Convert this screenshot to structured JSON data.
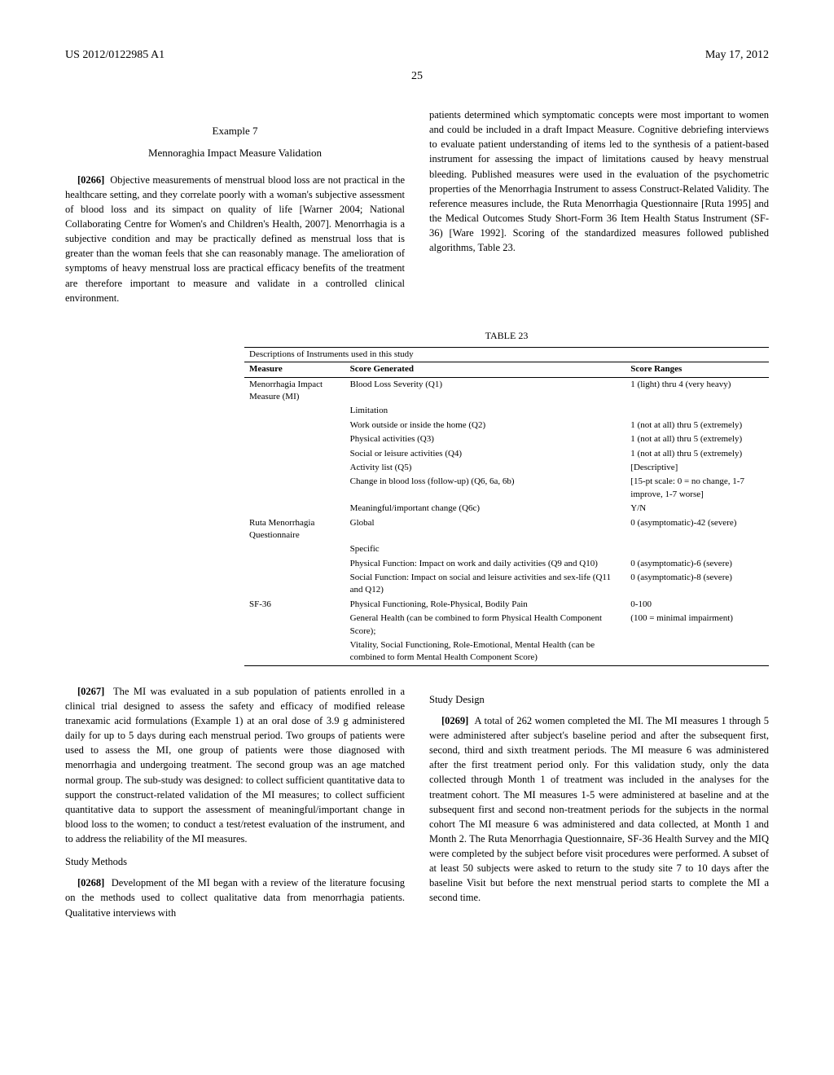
{
  "header": {
    "docnum": "US 2012/0122985 A1",
    "date": "May 17, 2012",
    "pagenum": "25"
  },
  "example": {
    "num": "Example 7",
    "title": "Mennoraghia Impact Measure Validation"
  },
  "paras": {
    "p0266_id": "[0266]",
    "p0266": "Objective measurements of menstrual blood loss are not practical in the healthcare setting, and they correlate poorly with a woman's subjective assessment of blood loss and its simpact on quality of life [Warner 2004; National Collaborating Centre for Women's and Children's Health, 2007]. Menorrhagia is a subjective condition and may be practically defined as menstrual loss that is greater than the woman feels that she can reasonably manage. The amelioration of symptoms of heavy menstrual loss are practical efficacy benefits of the treatment are therefore important to measure and validate in a controlled clinical environment.",
    "right1": "patients determined which symptomatic concepts were most important to women and could be included in a draft Impact Measure. Cognitive debriefing interviews to evaluate patient understanding of items led to the synthesis of a patient-based instrument for assessing the impact of limitations caused by heavy menstrual bleeding. Published measures were used in the evaluation of the psychometric properties of the Menorrhagia Instrument to assess Construct-Related Validity. The reference measures include, the Ruta Menorrhagia Questionnaire [Ruta 1995] and the Medical Outcomes Study Short-Form 36 Item Health Status Instrument (SF-36) [Ware 1992]. Scoring of the standardized measures followed published algorithms, Table 23.",
    "p0267_id": "[0267]",
    "p0267": "The MI was evaluated in a sub population of patients enrolled in a clinical trial designed to assess the safety and efficacy of modified release tranexamic acid formulations (Example 1) at an oral dose of 3.9 g administered daily for up to 5 days during each menstrual period. Two groups of patients were used to assess the MI, one group of patients were those diagnosed with menorrhagia and undergoing treatment. The second group was an age matched normal group. The sub-study was designed: to collect sufficient quantitative data to support the construct-related validation of the MI measures; to collect sufficient quantitative data to support the assessment of meaningful/important change in blood loss to the women; to conduct a test/retest evaluation of the instrument, and to address the reliability of the MI measures.",
    "study_methods_h": "Study Methods",
    "p0268_id": "[0268]",
    "p0268": "Development of the MI began with a review of the literature focusing on the methods used to collect qualitative data from menorrhagia patients. Qualitative interviews with",
    "study_design_h": "Study Design",
    "p0269_id": "[0269]",
    "p0269": "A total of 262 women completed the MI. The MI measures 1 through 5 were administered after subject's baseline period and after the subsequent first, second, third and sixth treatment periods. The MI measure 6 was administered after the first treatment period only. For this validation study, only the data collected through Month 1 of treatment was included in the analyses for the treatment cohort. The MI measures 1-5 were administered at baseline and at the subsequent first and second non-treatment periods for the subjects in the normal cohort The MI measure 6 was administered and data collected, at Month 1 and Month 2. The Ruta Menorrhagia Questionnaire, SF-36 Health Survey and the MIQ were completed by the subject before visit procedures were performed. A subset of at least 50 subjects were asked to return to the study site 7 to 10 days after the baseline Visit but before the next menstrual period starts to complete the MI a second time."
  },
  "table23": {
    "caption": "TABLE 23",
    "subtitle": "Descriptions of Instruments used in this study",
    "cols": [
      "Measure",
      "Score Generated",
      "Score Ranges"
    ],
    "rows": [
      [
        "Menorrhagia Impact Measure (MI)",
        "Blood Loss Severity (Q1)",
        "1 (light) thru 4 (very heavy)"
      ],
      [
        "",
        "Limitation",
        ""
      ],
      [
        "",
        "Work outside or inside the home (Q2)",
        "1 (not at all) thru 5 (extremely)"
      ],
      [
        "",
        "Physical activities (Q3)",
        "1 (not at all) thru 5 (extremely)"
      ],
      [
        "",
        "Social or leisure activities (Q4)",
        "1 (not at all) thru 5 (extremely)"
      ],
      [
        "",
        "Activity list (Q5)",
        "[Descriptive]"
      ],
      [
        "",
        "Change in blood loss (follow-up) (Q6, 6a, 6b)",
        "[15-pt scale: 0 = no change, 1-7 improve, 1-7 worse]"
      ],
      [
        "",
        "Meaningful/important change (Q6c)",
        "Y/N"
      ],
      [
        "Ruta Menorrhagia Questionnaire",
        "Global",
        "0 (asymptomatic)-42 (severe)"
      ],
      [
        "",
        "Specific",
        ""
      ],
      [
        "",
        "Physical Function: Impact on work and daily activities (Q9 and Q10)",
        "0 (asymptomatic)-6 (severe)"
      ],
      [
        "",
        "Social Function: Impact on social and leisure activities and sex-life (Q11 and Q12)",
        "0 (asymptomatic)-8 (severe)"
      ],
      [
        "SF-36",
        "Physical Functioning, Role-Physical, Bodily Pain",
        "0-100"
      ],
      [
        "",
        "General Health (can be combined to form Physical Health Component Score);",
        "(100 = minimal impairment)"
      ],
      [
        "",
        "Vitality, Social Functioning, Role-Emotional, Mental Health (can be combined to form Mental Health Component Score)",
        ""
      ]
    ]
  }
}
